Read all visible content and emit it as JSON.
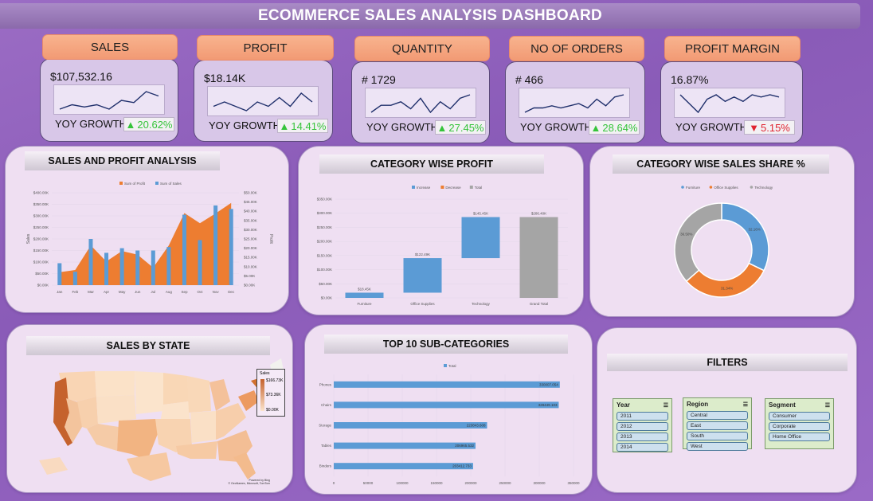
{
  "header": {
    "title": "ECOMMERCE SALES ANALYSIS DASHBOARD"
  },
  "kpis": [
    {
      "label": "SALES",
      "value": "$107,532.16",
      "yoy_label": "YOY GROWTH",
      "yoy": "20.62%",
      "trend": "up",
      "spark": [
        2,
        3,
        2.5,
        3,
        2,
        4,
        3.5,
        6,
        5
      ]
    },
    {
      "label": "PROFIT",
      "value": "$18.14K",
      "yoy_label": "YOY GROWTH",
      "yoy": "14.41%",
      "trend": "up",
      "spark": [
        4,
        4.5,
        4,
        3.5,
        4.5,
        4,
        5,
        4,
        5.5,
        4.5
      ]
    },
    {
      "label": "QUANTITY",
      "value": "# 1729",
      "yoy_label": "YOY GROWTH",
      "yoy": "27.45%",
      "trend": "up",
      "spark": [
        2,
        3,
        3,
        3.5,
        2.5,
        4,
        2,
        3.5,
        2.5,
        4,
        4.5
      ]
    },
    {
      "label": "NO OF ORDERS",
      "value": "# 466",
      "yoy_label": "YOY GROWTH",
      "yoy": "28.64%",
      "trend": "up",
      "spark": [
        1,
        2,
        2,
        2.5,
        2,
        2.5,
        3,
        2,
        4,
        2.5,
        4.5,
        5
      ]
    },
    {
      "label": "PROFIT MARGIN",
      "value": "16.87%",
      "yoy_label": "YOY GROWTH",
      "yoy": "5.15%",
      "trend": "down",
      "spark": [
        6,
        4,
        2,
        5,
        6,
        4.5,
        5.5,
        4.5,
        6,
        5.5,
        6,
        5.5
      ]
    }
  ],
  "panels": {
    "sales_profit": "SALES AND PROFIT ANALYSIS",
    "category_profit": "CATEGORY WISE PROFIT",
    "category_share": "CATEGORY WISE SALES SHARE %",
    "sales_state": "SALES BY STATE",
    "top_sub": "TOP 10 SUB-CATEGORIES",
    "filters": "FILTERS"
  },
  "chart_data": [
    {
      "type": "bar",
      "title": "SALES AND PROFIT ANALYSIS",
      "categories": [
        "Jan",
        "Feb",
        "Mar",
        "Apr",
        "May",
        "Jun",
        "Jul",
        "Aug",
        "Sep",
        "Oct",
        "Nov",
        "Dec"
      ],
      "series": [
        {
          "name": "Sum of Profit",
          "kind": "area",
          "axis": "right",
          "values": [
            7,
            8.2,
            21.5,
            12.8,
            18.5,
            16.5,
            9.5,
            21.5,
            39,
            33.5,
            38.8,
            44.5
          ]
        },
        {
          "name": "Sum of Sales",
          "kind": "bar",
          "axis": "left",
          "values": [
            95,
            58,
            200,
            140,
            160,
            150,
            150,
            165,
            305,
            195,
            345,
            330
          ]
        }
      ],
      "ylabel": "Sales",
      "y2label": "Profit",
      "yticks": [
        "$400.00K",
        "$350.00K",
        "$300.00K",
        "$250.00K",
        "$200.00K",
        "$150.00K",
        "$100.00K",
        "$50.00K",
        "$0.00K"
      ],
      "y2ticks": [
        "$50.00K",
        "$45.00K",
        "$40.00K",
        "$35.00K",
        "$30.00K",
        "$25.00K",
        "$20.00K",
        "$15.00K",
        "$10.00K",
        "$5.00K",
        "$0.00K"
      ],
      "ylim": [
        0,
        400
      ],
      "y2lim": [
        0,
        50
      ]
    },
    {
      "type": "bar",
      "subtype": "waterfall",
      "title": "CATEGORY WISE PROFIT",
      "legend": [
        "Increase",
        "Decrease",
        "Total"
      ],
      "categories": [
        "Furniture",
        "Office Supplies",
        "Technology",
        "Grand Total"
      ],
      "bars": [
        {
          "start": 0,
          "end": 18.45,
          "label": "$18.45K",
          "kind": "increase"
        },
        {
          "start": 18.45,
          "end": 140.94,
          "label": "$122.49K",
          "kind": "increase"
        },
        {
          "start": 140.94,
          "end": 286.4,
          "label": "$145.45K",
          "kind": "increase"
        },
        {
          "start": 0,
          "end": 286.4,
          "label": "$286.40K",
          "kind": "total"
        }
      ],
      "yticks": [
        "$350.00K",
        "$300.00K",
        "$250.00K",
        "$200.00K",
        "$150.00K",
        "$100.00K",
        "$50.00K",
        "$0.00K"
      ],
      "ylim": [
        0,
        350
      ]
    },
    {
      "type": "pie",
      "subtype": "donut",
      "title": "CATEGORY WISE SALES SHARE %",
      "labels": [
        "Furniture",
        "Office Supplies",
        "Technology"
      ],
      "values": [
        32.16,
        31.34,
        36.5
      ],
      "value_labels": [
        "32.16%",
        "31.34%",
        "36.50%"
      ],
      "colors": [
        "#5b9bd5",
        "#ed7d31",
        "#a5a5a5"
      ]
    },
    {
      "type": "bar",
      "orientation": "horizontal",
      "title": "TOP 10 SUB-CATEGORIES",
      "legend": [
        "Total"
      ],
      "categories": [
        "Phones",
        "Chairs",
        "Storage",
        "Tables",
        "Binders"
      ],
      "values": [
        330007.054,
        328449.103,
        223843.608,
        206965.532,
        203412.733
      ],
      "value_labels": [
        "330007.054",
        "328449.103",
        "223843.608",
        "206965.532",
        "203412.733"
      ],
      "xticks": [
        "0",
        "50000",
        "100000",
        "150000",
        "200000",
        "250000",
        "300000",
        "350000"
      ],
      "xlim": [
        0,
        350000
      ]
    }
  ],
  "map": {
    "legend_title": "Sales",
    "legend_ticks": [
      "$166.73K",
      "$73.36K",
      "$0.00K"
    ],
    "attribution": [
      "Powered by Bing",
      "© GeoNames, Microsoft, TomTom"
    ]
  },
  "filters": {
    "slicers": [
      {
        "title": "Year",
        "items": [
          "2011",
          "2012",
          "2013",
          "2014"
        ]
      },
      {
        "title": "Region",
        "items": [
          "Central",
          "East",
          "South",
          "West"
        ]
      },
      {
        "title": "Segment",
        "items": [
          "Consumer",
          "Corporate",
          "Home Office"
        ]
      }
    ]
  },
  "colors": {
    "sales": "#5b9bd5",
    "profit": "#ed7d31",
    "total": "#a5a5a5",
    "up": "#35c43a",
    "down": "#e0242f"
  }
}
